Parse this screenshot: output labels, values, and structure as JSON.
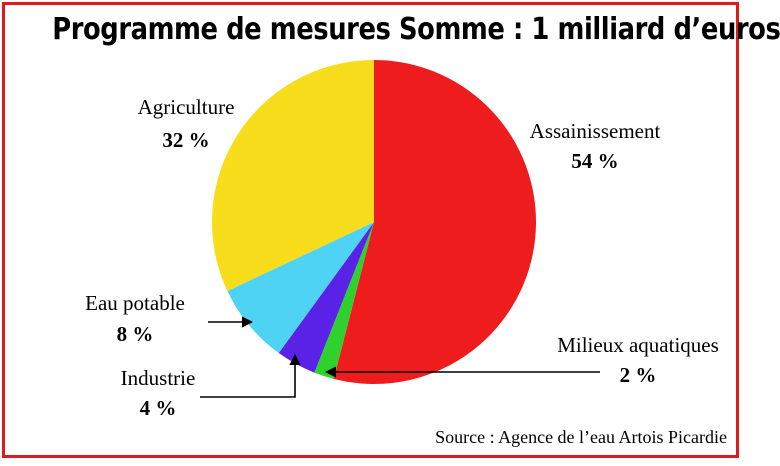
{
  "title": "Programme de mesures Somme : 1 milliard d’euros",
  "source": "Source : Agence de l’eau Artois Picardie",
  "chart_data": {
    "type": "pie",
    "title": "Programme de mesures Somme : 1 milliard d’euros",
    "slices": [
      {
        "label": "Assainissement",
        "value": 54,
        "value_label": "54 %",
        "color": "#ee1c1c"
      },
      {
        "label": "Milieux aquatiques",
        "value": 2,
        "value_label": "2 %",
        "color": "#2fd12f"
      },
      {
        "label": "Industrie",
        "value": 4,
        "value_label": "4 %",
        "color": "#5a22e6"
      },
      {
        "label": "Eau potable",
        "value": 8,
        "value_label": "8 %",
        "color": "#4fd3f5"
      },
      {
        "label": "Agriculture",
        "value": 32,
        "value_label": "32 %",
        "color": "#f7dd1c"
      }
    ],
    "legend": "none",
    "start_angle": "12 o'clock",
    "direction": "clockwise"
  }
}
